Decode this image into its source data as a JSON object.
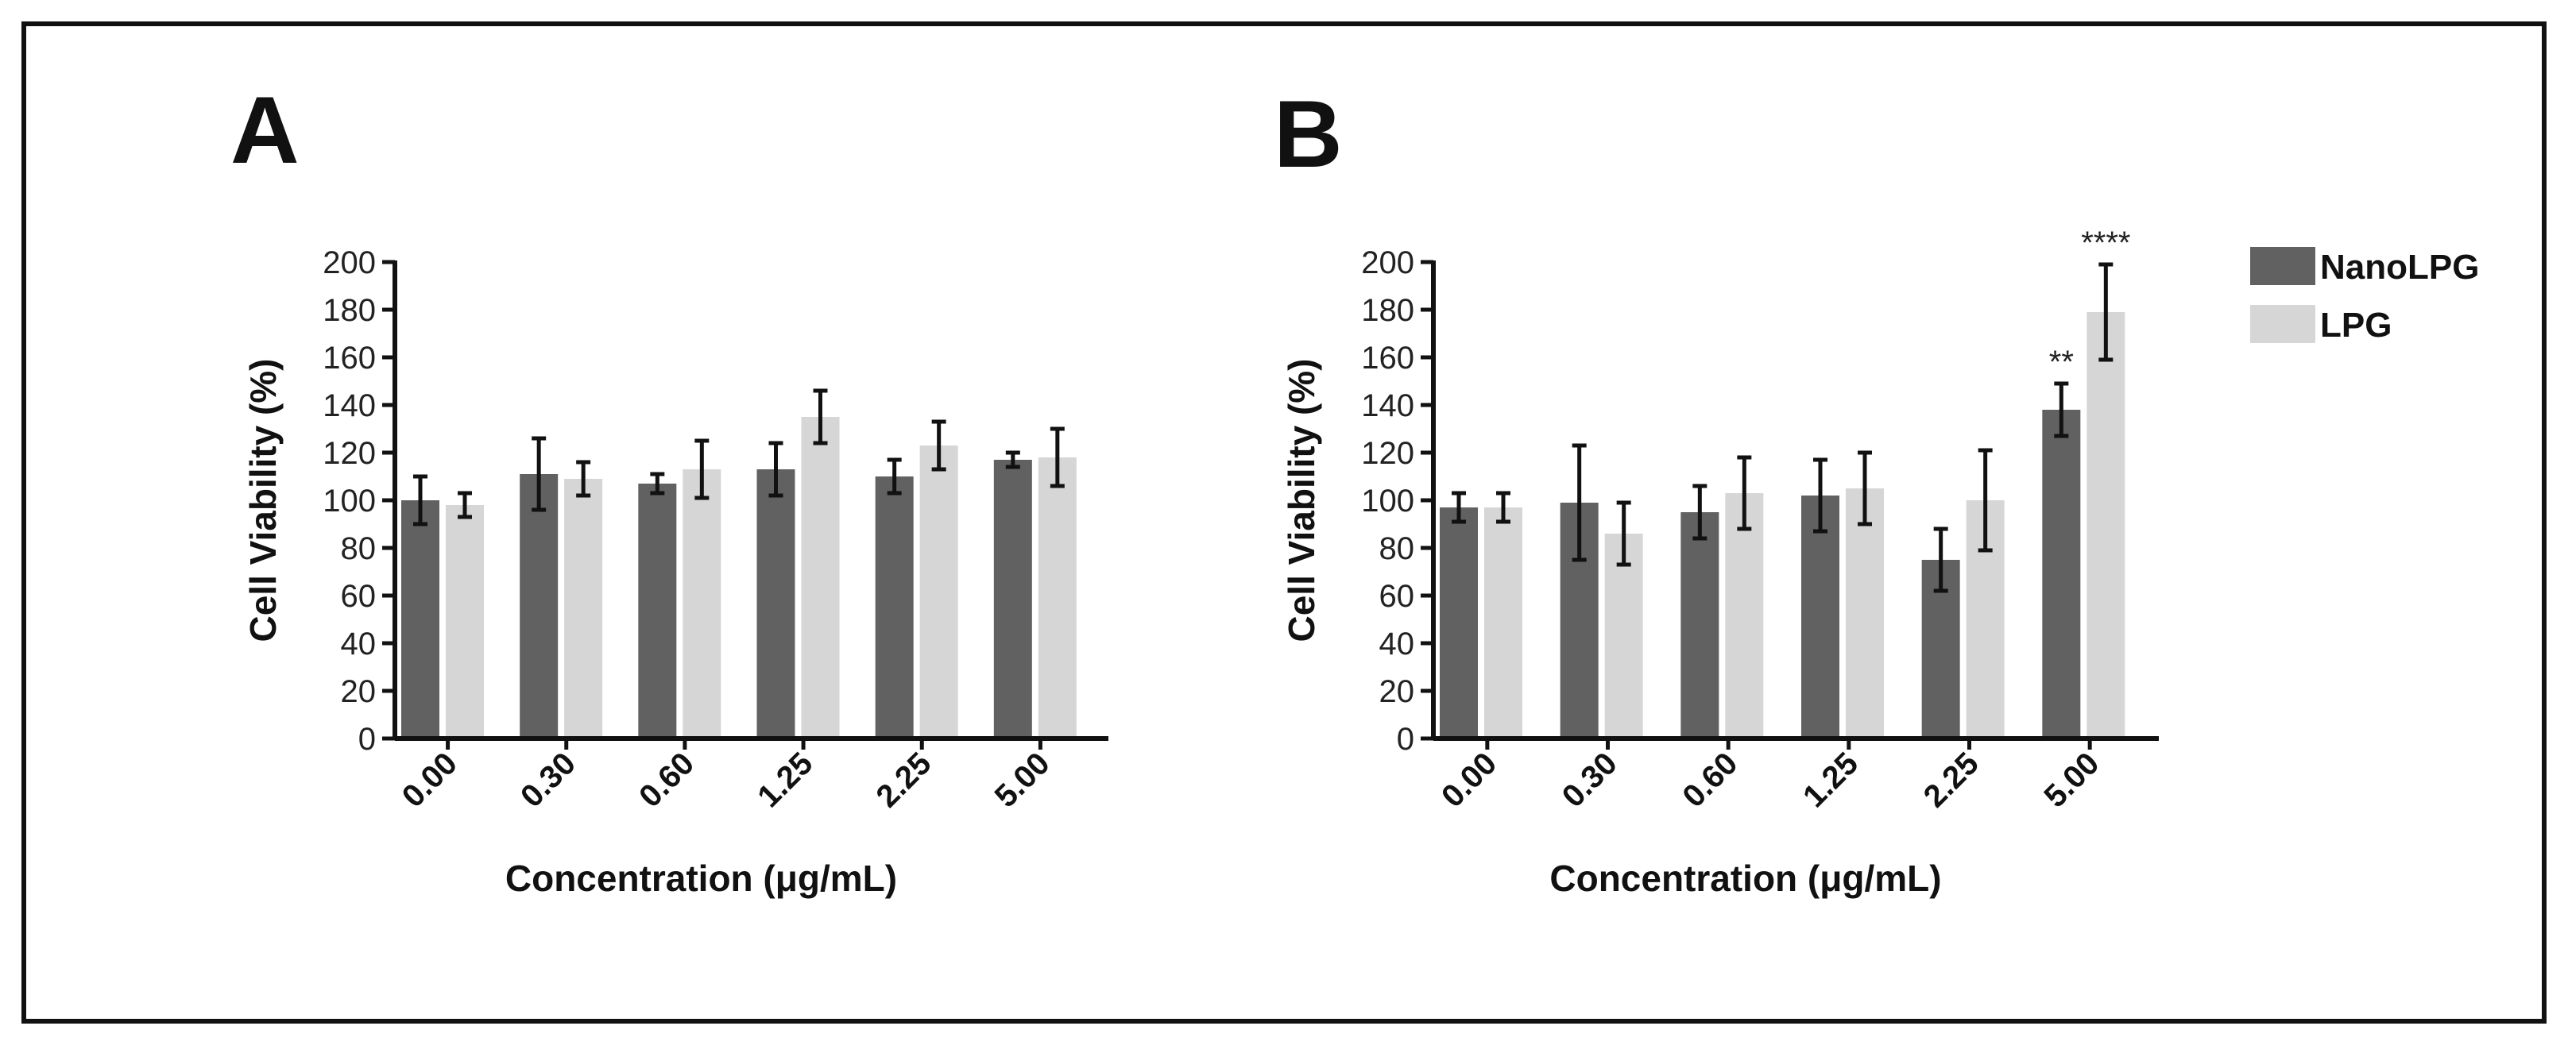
{
  "colors": {
    "background": "#ffffff",
    "frame": "#111111",
    "nanolpg": "#616161",
    "lpg": "#d6d6d6",
    "ink": "#111111"
  },
  "legend": {
    "position": "right",
    "items": [
      {
        "label": "NanoLPG",
        "color": "#616161"
      },
      {
        "label": "LPG",
        "color": "#d6d6d6"
      }
    ]
  },
  "chart_data": [
    {
      "type": "bar",
      "panel_label": "A",
      "title": "",
      "xlabel": "Concentration (μg/mL)",
      "ylabel": "Cell Viability (%)",
      "ylim": [
        0,
        200
      ],
      "yticks": [
        0,
        20,
        40,
        60,
        80,
        100,
        120,
        140,
        160,
        180,
        200
      ],
      "grid": false,
      "categories": [
        "0.00",
        "0.30",
        "0.60",
        "1.25",
        "2.25",
        "5.00"
      ],
      "series": [
        {
          "name": "NanoLPG",
          "values": [
            100,
            111,
            107,
            113,
            110,
            117
          ],
          "errors": [
            10,
            15,
            4,
            11,
            7,
            3
          ],
          "annotations": [
            "",
            "",
            "",
            "",
            "",
            ""
          ]
        },
        {
          "name": "LPG",
          "values": [
            98,
            109,
            113,
            135,
            123,
            118
          ],
          "errors": [
            5,
            7,
            12,
            11,
            10,
            12
          ],
          "annotations": [
            "",
            "",
            "",
            "",
            "",
            ""
          ]
        }
      ]
    },
    {
      "type": "bar",
      "panel_label": "B",
      "title": "",
      "xlabel": "Concentration (μg/mL)",
      "ylabel": "Cell Viability (%)",
      "ylim": [
        0,
        200
      ],
      "yticks": [
        0,
        20,
        40,
        60,
        80,
        100,
        120,
        140,
        160,
        180,
        200
      ],
      "grid": false,
      "categories": [
        "0.00",
        "0.30",
        "0.60",
        "1.25",
        "2.25",
        "5.00"
      ],
      "series": [
        {
          "name": "NanoLPG",
          "values": [
            97,
            99,
            95,
            102,
            75,
            138
          ],
          "errors": [
            6,
            24,
            11,
            15,
            13,
            11
          ],
          "annotations": [
            "",
            "",
            "",
            "",
            "",
            "**"
          ]
        },
        {
          "name": "LPG",
          "values": [
            97,
            86,
            103,
            105,
            100,
            179
          ],
          "errors": [
            6,
            13,
            15,
            15,
            21,
            20
          ],
          "annotations": [
            "",
            "",
            "",
            "",
            "",
            "****"
          ]
        }
      ]
    }
  ]
}
